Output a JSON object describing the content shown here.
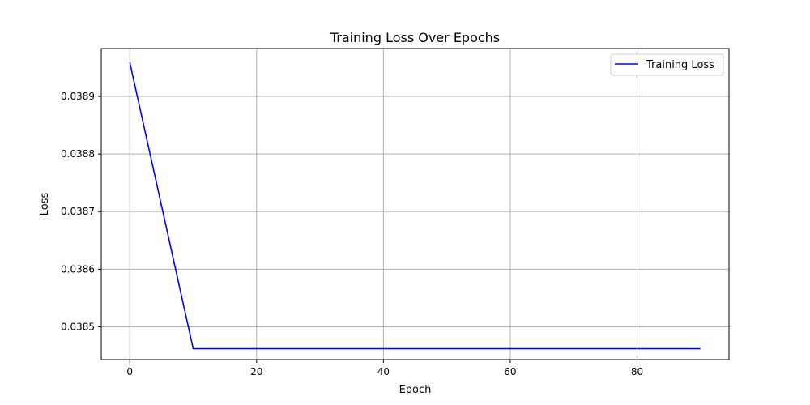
{
  "chart_data": {
    "type": "line",
    "title": "Training Loss Over Epochs",
    "xlabel": "Epoch",
    "ylabel": "Loss",
    "xlim": [
      -4.5,
      94.5
    ],
    "ylim": [
      0.038443,
      0.038983
    ],
    "x_ticks": [
      0,
      20,
      40,
      60,
      80
    ],
    "y_ticks": [
      0.0385,
      0.0386,
      0.0387,
      0.0388,
      0.0389
    ],
    "grid": true,
    "legend_position": "top-right",
    "series": [
      {
        "name": "Training Loss",
        "color": "#0000ff",
        "x": [
          0,
          10,
          20,
          30,
          40,
          50,
          60,
          70,
          80,
          90
        ],
        "y": [
          0.038959,
          0.038462,
          0.038462,
          0.038462,
          0.038462,
          0.038462,
          0.038462,
          0.038462,
          0.038462,
          0.038462
        ]
      }
    ]
  }
}
